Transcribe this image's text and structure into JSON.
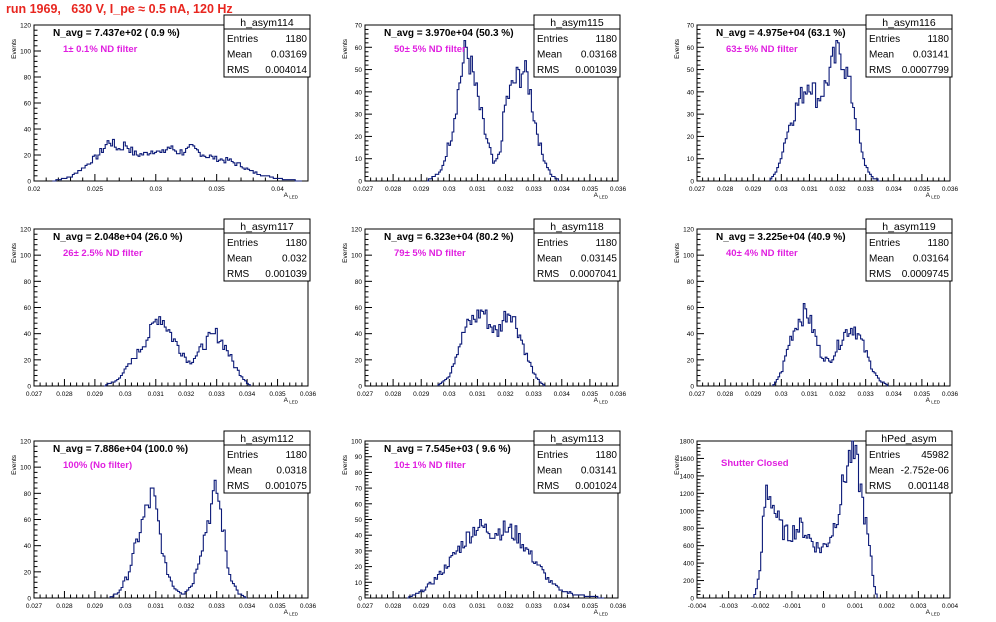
{
  "header": {
    "title": "run 1969,   630 V, I_pe ≈ 0.5 nA, 120 Hz"
  },
  "common": {
    "xlabel": "A",
    "xlabel_sub": "LED",
    "ylabel": "Events"
  },
  "chart_data": [
    {
      "type": "histogram",
      "hist_name": "h_asym114",
      "stats": {
        "entries": "1180",
        "mean": "0.03169",
        "rms": "0.004014"
      },
      "navg": "N_avg = 7.437e+02 ( 0.9 %)",
      "filter": "1± 0.1% ND filter",
      "xlim": [
        0.02,
        0.0425
      ],
      "ylim": [
        0,
        120
      ],
      "xticks": [
        0.02,
        0.025,
        0.03,
        0.035,
        0.04
      ],
      "xtick_labels": [
        "0.02",
        "0.025",
        "0.03",
        "0.035",
        "0.04"
      ],
      "yticks": [
        0,
        20,
        40,
        60,
        80,
        100,
        120
      ],
      "ytick_labels": [
        "0",
        "20",
        "40",
        "60",
        "80",
        "100",
        "120"
      ],
      "profile": [
        [
          0.0215,
          0
        ],
        [
          0.023,
          3
        ],
        [
          0.0243,
          12
        ],
        [
          0.0255,
          22
        ],
        [
          0.0262,
          31
        ],
        [
          0.027,
          24
        ],
        [
          0.0275,
          29
        ],
        [
          0.0282,
          21
        ],
        [
          0.029,
          20
        ],
        [
          0.03,
          25
        ],
        [
          0.0305,
          20
        ],
        [
          0.031,
          26
        ],
        [
          0.032,
          22
        ],
        [
          0.033,
          25
        ],
        [
          0.034,
          20
        ],
        [
          0.035,
          17
        ],
        [
          0.036,
          16
        ],
        [
          0.037,
          12
        ],
        [
          0.038,
          7
        ],
        [
          0.039,
          4
        ],
        [
          0.04,
          2
        ],
        [
          0.041,
          1
        ],
        [
          0.042,
          0
        ]
      ]
    },
    {
      "type": "histogram",
      "hist_name": "h_asym115",
      "stats": {
        "entries": "1180",
        "mean": "0.03168",
        "rms": "0.001039"
      },
      "navg": "N_avg = 3.970e+04 (50.3 %)",
      "filter": "50± 5% ND filter",
      "xlim": [
        0.027,
        0.036
      ],
      "ylim": [
        0,
        70
      ],
      "xticks": [
        0.027,
        0.028,
        0.029,
        0.03,
        0.031,
        0.032,
        0.033,
        0.034,
        0.035,
        0.036
      ],
      "xtick_labels": [
        "0.027",
        "0.028",
        "0.029",
        "0.03",
        "0.031",
        "0.032",
        "0.033",
        "0.034",
        "0.035",
        "0.036"
      ],
      "yticks": [
        0,
        10,
        20,
        30,
        40,
        50,
        60,
        70
      ],
      "ytick_labels": [
        "0",
        "10",
        "20",
        "30",
        "40",
        "50",
        "60",
        "70"
      ],
      "profile": [
        [
          0.0292,
          0
        ],
        [
          0.0297,
          4
        ],
        [
          0.0301,
          22
        ],
        [
          0.0304,
          47
        ],
        [
          0.0306,
          60
        ],
        [
          0.0308,
          50
        ],
        [
          0.031,
          38
        ],
        [
          0.0313,
          20
        ],
        [
          0.0316,
          7
        ],
        [
          0.0318,
          12
        ],
        [
          0.032,
          35
        ],
        [
          0.0323,
          44
        ],
        [
          0.0326,
          50
        ],
        [
          0.0328,
          46
        ],
        [
          0.033,
          30
        ],
        [
          0.0333,
          12
        ],
        [
          0.0336,
          3
        ],
        [
          0.0339,
          0
        ]
      ]
    },
    {
      "type": "histogram",
      "hist_name": "h_asym116",
      "stats": {
        "entries": "1180",
        "mean": "0.03141",
        "rms": "0.0007799"
      },
      "navg": "N_avg = 4.975e+04 (63.1 %)",
      "filter": "63± 5% ND filter",
      "xlim": [
        0.027,
        0.036
      ],
      "ylim": [
        0,
        70
      ],
      "xticks": [
        0.027,
        0.028,
        0.029,
        0.03,
        0.031,
        0.032,
        0.033,
        0.034,
        0.035,
        0.036
      ],
      "xtick_labels": [
        "0.027",
        "0.028",
        "0.029",
        "0.03",
        "0.031",
        "0.032",
        "0.033",
        "0.034",
        "0.035",
        "0.036"
      ],
      "yticks": [
        0,
        10,
        20,
        30,
        40,
        50,
        60,
        70
      ],
      "ytick_labels": [
        "0",
        "10",
        "20",
        "30",
        "40",
        "50",
        "60",
        "70"
      ],
      "profile": [
        [
          0.0296,
          0
        ],
        [
          0.0299,
          6
        ],
        [
          0.0302,
          22
        ],
        [
          0.0305,
          32
        ],
        [
          0.0308,
          40
        ],
        [
          0.031,
          46
        ],
        [
          0.0313,
          36
        ],
        [
          0.0316,
          44
        ],
        [
          0.0319,
          55
        ],
        [
          0.0321,
          59
        ],
        [
          0.0324,
          45
        ],
        [
          0.0326,
          32
        ],
        [
          0.0329,
          10
        ],
        [
          0.0332,
          2
        ],
        [
          0.0335,
          0
        ]
      ]
    },
    {
      "type": "histogram",
      "hist_name": "h_asym117",
      "stats": {
        "entries": "1180",
        "mean": "0.032",
        "rms": "0.001039"
      },
      "navg": "N_avg = 2.048e+04 (26.0 %)",
      "filter": "26± 2.5% ND filter",
      "xlim": [
        0.027,
        0.036
      ],
      "ylim": [
        0,
        120
      ],
      "xticks": [
        0.027,
        0.028,
        0.029,
        0.03,
        0.031,
        0.032,
        0.033,
        0.034,
        0.035,
        0.036
      ],
      "xtick_labels": [
        "0.027",
        "0.028",
        "0.029",
        "0.03",
        "0.031",
        "0.032",
        "0.033",
        "0.034",
        "0.035",
        "0.036"
      ],
      "yticks": [
        0,
        20,
        40,
        60,
        80,
        100,
        120
      ],
      "ytick_labels": [
        "0",
        "20",
        "40",
        "60",
        "80",
        "100",
        "120"
      ],
      "profile": [
        [
          0.0293,
          0
        ],
        [
          0.0297,
          4
        ],
        [
          0.03,
          12
        ],
        [
          0.0304,
          25
        ],
        [
          0.0308,
          40
        ],
        [
          0.0311,
          55
        ],
        [
          0.0313,
          48
        ],
        [
          0.0316,
          35
        ],
        [
          0.0319,
          25
        ],
        [
          0.0321,
          18
        ],
        [
          0.0324,
          25
        ],
        [
          0.0327,
          35
        ],
        [
          0.033,
          40
        ],
        [
          0.0333,
          30
        ],
        [
          0.0336,
          15
        ],
        [
          0.0339,
          5
        ],
        [
          0.0341,
          0
        ]
      ]
    },
    {
      "type": "histogram",
      "hist_name": "h_asym118",
      "stats": {
        "entries": "1180",
        "mean": "0.03145",
        "rms": "0.0007041"
      },
      "navg": "N_avg = 6.323e+04 (80.2 %)",
      "filter": "79± 5% ND filter",
      "xlim": [
        0.027,
        0.036
      ],
      "ylim": [
        0,
        120
      ],
      "xticks": [
        0.027,
        0.028,
        0.029,
        0.03,
        0.031,
        0.032,
        0.033,
        0.034,
        0.035,
        0.036
      ],
      "xtick_labels": [
        "0.027",
        "0.028",
        "0.029",
        "0.03",
        "0.031",
        "0.032",
        "0.033",
        "0.034",
        "0.035",
        "0.036"
      ],
      "yticks": [
        0,
        20,
        40,
        60,
        80,
        100,
        120
      ],
      "ytick_labels": [
        "0",
        "20",
        "40",
        "60",
        "80",
        "100",
        "120"
      ],
      "profile": [
        [
          0.0296,
          0
        ],
        [
          0.03,
          8
        ],
        [
          0.0303,
          28
        ],
        [
          0.0306,
          45
        ],
        [
          0.0309,
          52
        ],
        [
          0.0312,
          58
        ],
        [
          0.0314,
          48
        ],
        [
          0.0317,
          40
        ],
        [
          0.032,
          55
        ],
        [
          0.0322,
          58
        ],
        [
          0.0325,
          40
        ],
        [
          0.0328,
          20
        ],
        [
          0.0331,
          6
        ],
        [
          0.0334,
          0
        ]
      ]
    },
    {
      "type": "histogram",
      "hist_name": "h_asym119",
      "stats": {
        "entries": "1180",
        "mean": "0.03164",
        "rms": "0.0009745"
      },
      "navg": "N_avg = 3.225e+04 (40.9 %)",
      "filter": "40± 4% ND filter",
      "xlim": [
        0.027,
        0.036
      ],
      "ylim": [
        0,
        120
      ],
      "xticks": [
        0.027,
        0.028,
        0.029,
        0.03,
        0.031,
        0.032,
        0.033,
        0.034,
        0.035,
        0.036
      ],
      "xtick_labels": [
        "0.027",
        "0.028",
        "0.029",
        "0.03",
        "0.031",
        "0.032",
        "0.033",
        "0.034",
        "0.035",
        "0.036"
      ],
      "yticks": [
        0,
        20,
        40,
        60,
        80,
        100,
        120
      ],
      "ytick_labels": [
        "0",
        "20",
        "40",
        "60",
        "80",
        "100",
        "120"
      ],
      "profile": [
        [
          0.0297,
          0
        ],
        [
          0.03,
          10
        ],
        [
          0.0303,
          35
        ],
        [
          0.0306,
          50
        ],
        [
          0.0309,
          58
        ],
        [
          0.0311,
          45
        ],
        [
          0.0314,
          25
        ],
        [
          0.0317,
          18
        ],
        [
          0.032,
          30
        ],
        [
          0.0323,
          42
        ],
        [
          0.0326,
          45
        ],
        [
          0.0329,
          32
        ],
        [
          0.0332,
          15
        ],
        [
          0.0335,
          4
        ],
        [
          0.0338,
          0
        ]
      ]
    },
    {
      "type": "histogram",
      "hist_name": "h_asym112",
      "stats": {
        "entries": "1180",
        "mean": "0.0318",
        "rms": "0.001075"
      },
      "navg": "N_avg = 7.886e+04 (100.0 %)",
      "filter": "100% (No filter)",
      "xlim": [
        0.027,
        0.036
      ],
      "ylim": [
        0,
        120
      ],
      "xticks": [
        0.027,
        0.028,
        0.029,
        0.03,
        0.031,
        0.032,
        0.033,
        0.034,
        0.035,
        0.036
      ],
      "xtick_labels": [
        "0.027",
        "0.028",
        "0.029",
        "0.03",
        "0.031",
        "0.032",
        "0.033",
        "0.034",
        "0.035",
        "0.036"
      ],
      "yticks": [
        0,
        20,
        40,
        60,
        80,
        100,
        120
      ],
      "ytick_labels": [
        "0",
        "20",
        "40",
        "60",
        "80",
        "100",
        "120"
      ],
      "profile": [
        [
          0.0295,
          0
        ],
        [
          0.0298,
          5
        ],
        [
          0.0301,
          18
        ],
        [
          0.0304,
          45
        ],
        [
          0.0307,
          68
        ],
        [
          0.0309,
          80
        ],
        [
          0.0311,
          55
        ],
        [
          0.0313,
          25
        ],
        [
          0.0316,
          8
        ],
        [
          0.0319,
          3
        ],
        [
          0.0322,
          10
        ],
        [
          0.0325,
          38
        ],
        [
          0.0328,
          68
        ],
        [
          0.033,
          84
        ],
        [
          0.0332,
          55
        ],
        [
          0.0334,
          20
        ],
        [
          0.0337,
          4
        ],
        [
          0.034,
          0
        ]
      ]
    },
    {
      "type": "histogram",
      "hist_name": "h_asym113",
      "stats": {
        "entries": "1180",
        "mean": "0.03141",
        "rms": "0.001024"
      },
      "navg": "N_avg = 7.545e+03 ( 9.6 %)",
      "filter": "10± 1% ND filter",
      "xlim": [
        0.027,
        0.036
      ],
      "ylim": [
        0,
        100
      ],
      "xticks": [
        0.027,
        0.028,
        0.029,
        0.03,
        0.031,
        0.032,
        0.033,
        0.034,
        0.035,
        0.036
      ],
      "xtick_labels": [
        "0.027",
        "0.028",
        "0.029",
        "0.03",
        "0.031",
        "0.032",
        "0.033",
        "0.034",
        "0.035",
        "0.036"
      ],
      "yticks": [
        0,
        10,
        20,
        30,
        40,
        50,
        60,
        70,
        80,
        90,
        100
      ],
      "ytick_labels": [
        "0",
        "10",
        "20",
        "30",
        "40",
        "50",
        "60",
        "70",
        "80",
        "90",
        "100"
      ],
      "profile": [
        [
          0.0285,
          0
        ],
        [
          0.029,
          4
        ],
        [
          0.0294,
          10
        ],
        [
          0.0298,
          18
        ],
        [
          0.0302,
          28
        ],
        [
          0.0306,
          38
        ],
        [
          0.031,
          46
        ],
        [
          0.0313,
          44
        ],
        [
          0.0316,
          42
        ],
        [
          0.032,
          44
        ],
        [
          0.0324,
          40
        ],
        [
          0.0328,
          30
        ],
        [
          0.0332,
          20
        ],
        [
          0.0336,
          10
        ],
        [
          0.034,
          5
        ],
        [
          0.0345,
          2
        ],
        [
          0.035,
          1
        ],
        [
          0.0355,
          0
        ]
      ]
    },
    {
      "type": "histogram",
      "hist_name": "hPed_asym",
      "stats": {
        "entries": "45982",
        "mean": "-2.752e-06",
        "rms": "0.001148"
      },
      "navg": "",
      "filter": "Shutter Closed",
      "xlim": [
        -0.004,
        0.004
      ],
      "ylim": [
        0,
        1800
      ],
      "xticks": [
        -0.004,
        -0.003,
        -0.002,
        -0.001,
        0,
        0.001,
        0.002,
        0.003,
        0.004
      ],
      "xtick_labels": [
        "-0.004",
        "-0.003",
        "-0.002",
        "-0.001",
        "0",
        "0.001",
        "0.002",
        "0.003",
        "0.004"
      ],
      "yticks": [
        0,
        200,
        400,
        600,
        800,
        1000,
        1200,
        1400,
        1600,
        1800
      ],
      "ytick_labels": [
        "0",
        "200",
        "400",
        "600",
        "800",
        "1000",
        "1200",
        "1400",
        "1600",
        "1800"
      ],
      "profile": [
        [
          -0.0022,
          0
        ],
        [
          -0.002,
          300
        ],
        [
          -0.0019,
          900
        ],
        [
          -0.0018,
          1250
        ],
        [
          -0.00165,
          1150
        ],
        [
          -0.0015,
          950
        ],
        [
          -0.0013,
          780
        ],
        [
          -0.0011,
          720
        ],
        [
          -0.0009,
          780
        ],
        [
          -0.0007,
          820
        ],
        [
          -0.0005,
          720
        ],
        [
          -0.0003,
          620
        ],
        [
          -0.0001,
          560
        ],
        [
          0.0001,
          620
        ],
        [
          0.0003,
          780
        ],
        [
          0.0005,
          1050
        ],
        [
          0.0007,
          1450
        ],
        [
          0.0009,
          1700
        ],
        [
          0.0011,
          1450
        ],
        [
          0.0013,
          950
        ],
        [
          0.0015,
          450
        ],
        [
          0.0016,
          150
        ],
        [
          0.0017,
          0
        ]
      ]
    }
  ]
}
